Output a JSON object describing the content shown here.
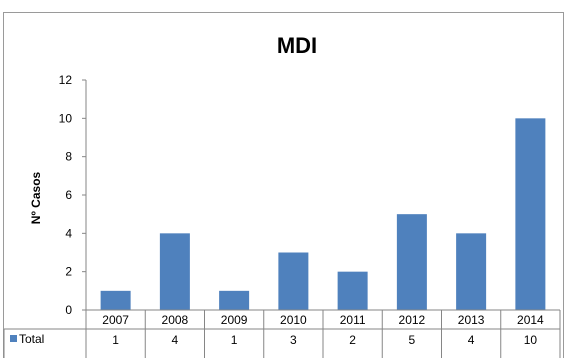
{
  "chart_data": {
    "type": "bar",
    "title": "MDI",
    "ylabel": "Nº Casos",
    "xlabel": "",
    "categories": [
      "2007",
      "2008",
      "2009",
      "2010",
      "2011",
      "2012",
      "2013",
      "2014"
    ],
    "series": [
      {
        "name": "Total",
        "values": [
          1,
          4,
          1,
          3,
          2,
          5,
          4,
          10
        ]
      }
    ],
    "ylim": [
      0,
      12
    ],
    "yticks": [
      0,
      2,
      4,
      6,
      8,
      10,
      12
    ],
    "grid": false,
    "data_table": true,
    "legend": "in-data-table",
    "bar_color": "#4F81BD"
  }
}
